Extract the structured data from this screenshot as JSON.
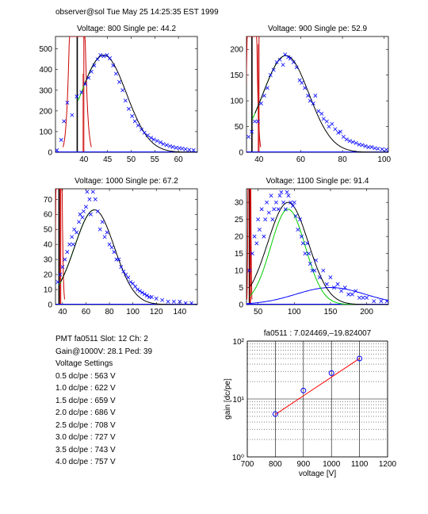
{
  "header": "observer@sol  Tue May 25 14:25:35 EST 1999",
  "colors": {
    "data": "#0000ff",
    "fit": "#000000",
    "green": "#00cc00",
    "red": "#cc0000",
    "gain": "#ff0000"
  },
  "chart_data": [
    {
      "type": "scatter",
      "title": "Voltage: 800 Single pe: 44.2",
      "xlim": [
        34,
        64
      ],
      "ylim": [
        0,
        560
      ],
      "xticks": [
        40,
        45,
        50,
        55,
        60
      ],
      "yticks": [
        0,
        100,
        200,
        300,
        400,
        500
      ],
      "peak": 44.2,
      "fit_amp": 470,
      "fit_sigma": 4.8,
      "green_x_end": 44.2,
      "ped": {
        "x": 38.6,
        "top": 380,
        "width": 1.0,
        "spike_x": 40.0
      },
      "points": [
        [
          34.3,
          10
        ],
        [
          35.2,
          60
        ],
        [
          35.8,
          150
        ],
        [
          36.5,
          240
        ],
        [
          37.5,
          180
        ],
        [
          38.5,
          270
        ],
        [
          39.5,
          290
        ],
        [
          40.3,
          330
        ],
        [
          41,
          360
        ],
        [
          41.6,
          390
        ],
        [
          42.2,
          420
        ],
        [
          42.9,
          450
        ],
        [
          43.5,
          470
        ],
        [
          44.2,
          465
        ],
        [
          44.9,
          470
        ],
        [
          45.5,
          455
        ],
        [
          46.2,
          420
        ],
        [
          46.8,
          380
        ],
        [
          47.5,
          340
        ],
        [
          48.2,
          300
        ],
        [
          48.8,
          250
        ],
        [
          49.5,
          210
        ],
        [
          50.2,
          175
        ],
        [
          50.8,
          150
        ],
        [
          51.5,
          130
        ],
        [
          52.2,
          110
        ],
        [
          52.8,
          95
        ],
        [
          53.5,
          82
        ],
        [
          54.2,
          70
        ],
        [
          54.8,
          62
        ],
        [
          55.5,
          55
        ],
        [
          56.2,
          48
        ],
        [
          56.8,
          40
        ],
        [
          57.5,
          35
        ],
        [
          58.2,
          30
        ],
        [
          58.8,
          26
        ],
        [
          59.5,
          22
        ],
        [
          60.2,
          20
        ],
        [
          60.8,
          18
        ],
        [
          61.5,
          15
        ],
        [
          62.3,
          12
        ],
        [
          63.2,
          10
        ]
      ]
    },
    {
      "type": "scatter",
      "title": "Voltage: 900 Single pe: 52.9",
      "xlim": [
        34,
        102
      ],
      "ylim": [
        0,
        225
      ],
      "xticks": [
        40,
        60,
        80,
        100
      ],
      "yticks": [
        0,
        50,
        100,
        150,
        200
      ],
      "peak": 52.9,
      "fit_amp": 188,
      "fit_sigma": 11,
      "green_x_end": 52.9,
      "ped": {
        "x": 36.6,
        "top": 210,
        "width": 1.4,
        "spike_x": 40.0
      },
      "points": [
        [
          35,
          30
        ],
        [
          36.5,
          40
        ],
        [
          38,
          60
        ],
        [
          39.5,
          60
        ],
        [
          41,
          95
        ],
        [
          42.5,
          110
        ],
        [
          44,
          125
        ],
        [
          45.5,
          150
        ],
        [
          47,
          160
        ],
        [
          48.5,
          175
        ],
        [
          50,
          180
        ],
        [
          51.5,
          170
        ],
        [
          52.5,
          190
        ],
        [
          54,
          185
        ],
        [
          55,
          182
        ],
        [
          56.5,
          175
        ],
        [
          58,
          165
        ],
        [
          59.5,
          140
        ],
        [
          60.5,
          135
        ],
        [
          62,
          125
        ],
        [
          63.5,
          110
        ],
        [
          64.5,
          100
        ],
        [
          66,
          95
        ],
        [
          67,
          110
        ],
        [
          68.5,
          80
        ],
        [
          70,
          75
        ],
        [
          71,
          65
        ],
        [
          72.5,
          60
        ],
        [
          73.5,
          50
        ],
        [
          75,
          55
        ],
        [
          76.5,
          45
        ],
        [
          78,
          38
        ],
        [
          79,
          40
        ],
        [
          80.5,
          30
        ],
        [
          82,
          25
        ],
        [
          83.5,
          22
        ],
        [
          85,
          20
        ],
        [
          86.5,
          18
        ],
        [
          88,
          15
        ],
        [
          89.5,
          14
        ],
        [
          91,
          12
        ],
        [
          92.5,
          10
        ],
        [
          94,
          10
        ],
        [
          95.5,
          8
        ],
        [
          97,
          7
        ],
        [
          99,
          6
        ],
        [
          101,
          5
        ]
      ]
    },
    {
      "type": "scatter",
      "title": "Voltage: 1000 Single pe: 67.2",
      "xlim": [
        34,
        155
      ],
      "ylim": [
        0,
        77
      ],
      "xticks": [
        40,
        60,
        80,
        100,
        120,
        140
      ],
      "yticks": [
        0,
        10,
        20,
        30,
        40,
        50,
        60,
        70
      ],
      "peak": 67.2,
      "fit_amp": 63,
      "fit_sigma": 17,
      "green_x_end": 67.2,
      "ped": {
        "x": 37.0,
        "top": 77,
        "width": 1.6,
        "spike_x": 38.5
      },
      "points": [
        [
          36,
          15
        ],
        [
          38,
          20
        ],
        [
          40,
          25
        ],
        [
          42,
          30
        ],
        [
          44,
          35
        ],
        [
          46,
          40
        ],
        [
          48,
          45
        ],
        [
          49,
          40
        ],
        [
          50,
          50
        ],
        [
          52,
          48
        ],
        [
          54,
          55
        ],
        [
          55,
          60
        ],
        [
          57,
          58
        ],
        [
          58,
          62
        ],
        [
          60,
          65
        ],
        [
          61,
          75
        ],
        [
          63,
          70
        ],
        [
          64,
          60
        ],
        [
          66,
          75
        ],
        [
          68,
          70
        ],
        [
          70,
          62
        ],
        [
          72,
          50
        ],
        [
          74,
          55
        ],
        [
          76,
          45
        ],
        [
          78,
          48
        ],
        [
          80,
          40
        ],
        [
          82,
          38
        ],
        [
          84,
          35
        ],
        [
          86,
          30
        ],
        [
          88,
          30
        ],
        [
          90,
          25
        ],
        [
          92,
          22
        ],
        [
          94,
          20
        ],
        [
          96,
          18
        ],
        [
          98,
          15
        ],
        [
          100,
          14
        ],
        [
          102,
          12
        ],
        [
          104,
          10
        ],
        [
          106,
          9
        ],
        [
          108,
          8
        ],
        [
          110,
          7
        ],
        [
          112,
          6
        ],
        [
          114,
          5
        ],
        [
          116,
          5
        ],
        [
          120,
          4
        ],
        [
          125,
          3
        ],
        [
          130,
          2
        ],
        [
          135,
          2
        ],
        [
          140,
          2
        ],
        [
          145,
          1
        ],
        [
          150,
          1
        ]
      ]
    },
    {
      "type": "scatter",
      "title": "Voltage: 1100 Single pe: 91.4",
      "xlim": [
        34,
        230
      ],
      "ylim": [
        0,
        34
      ],
      "xticks": [
        50,
        100,
        150,
        200
      ],
      "yticks": [
        0,
        5,
        10,
        15,
        20,
        25,
        30
      ],
      "peak": 91.4,
      "fit_amp": 30,
      "fit_sigma": 28,
      "green_x_end": 190,
      "ped": {
        "x": 38.0,
        "top": 34,
        "width": 1.2,
        "spike_x": 39.5
      },
      "green_amp": 28,
      "green_sigma": 24,
      "wide_amp": 5,
      "wide_sigma": 48,
      "wide_center": 150,
      "points": [
        [
          38,
          10
        ],
        [
          42,
          15
        ],
        [
          45,
          20
        ],
        [
          48,
          18
        ],
        [
          50,
          25
        ],
        [
          52,
          22
        ],
        [
          55,
          28
        ],
        [
          58,
          20
        ],
        [
          60,
          25
        ],
        [
          62,
          30
        ],
        [
          65,
          27
        ],
        [
          68,
          32
        ],
        [
          70,
          25
        ],
        [
          72,
          28
        ],
        [
          75,
          30
        ],
        [
          78,
          28
        ],
        [
          80,
          32
        ],
        [
          82,
          33
        ],
        [
          85,
          30
        ],
        [
          88,
          28
        ],
        [
          90,
          33
        ],
        [
          92,
          32
        ],
        [
          95,
          30
        ],
        [
          98,
          29
        ],
        [
          100,
          30
        ],
        [
          102,
          26
        ],
        [
          105,
          22
        ],
        [
          108,
          25
        ],
        [
          110,
          20
        ],
        [
          112,
          18
        ],
        [
          115,
          15
        ],
        [
          118,
          18
        ],
        [
          120,
          15
        ],
        [
          122,
          12
        ],
        [
          125,
          10
        ],
        [
          128,
          10
        ],
        [
          130,
          13
        ],
        [
          135,
          8
        ],
        [
          140,
          10
        ],
        [
          145,
          6
        ],
        [
          150,
          8
        ],
        [
          155,
          5
        ],
        [
          160,
          6
        ],
        [
          165,
          4
        ],
        [
          170,
          5
        ],
        [
          175,
          3
        ],
        [
          180,
          3
        ],
        [
          185,
          4
        ],
        [
          190,
          2
        ],
        [
          195,
          2
        ],
        [
          200,
          2
        ],
        [
          210,
          1
        ],
        [
          220,
          1
        ],
        [
          228,
          1
        ]
      ]
    },
    {
      "type": "scatter",
      "title": "fa0511 : 7.024469,–19.824007",
      "xlabel": "voltage [V]",
      "ylabel": "gain [dc/pe]",
      "xlim": [
        700,
        1200
      ],
      "ylim": [
        1,
        100
      ],
      "yscale": "log",
      "xticks": [
        700,
        800,
        900,
        1000,
        1100,
        1200
      ],
      "yticks": [
        1,
        10,
        100
      ],
      "ytick_labels": [
        "10⁰",
        "10¹",
        "10²"
      ],
      "x": [
        800,
        900,
        1000,
        1100
      ],
      "y": [
        5.5,
        14,
        28,
        50
      ],
      "fit": [
        [
          800,
          5.4
        ],
        [
          1100,
          50
        ]
      ]
    }
  ],
  "info": [
    "PMT fa0511 Slot: 12 Ch: 2",
    "Gain@1000V: 28.1 Ped: 39",
    "Voltage Settings",
    "0.5 dc/pe : 563 V",
    "1.0 dc/pe : 622 V",
    "1.5 dc/pe : 659 V",
    "2.0 dc/pe : 686 V",
    "2.5 dc/pe : 708 V",
    "3.0 dc/pe : 727 V",
    "3.5 dc/pe : 743 V",
    "4.0 dc/pe : 757 V"
  ]
}
